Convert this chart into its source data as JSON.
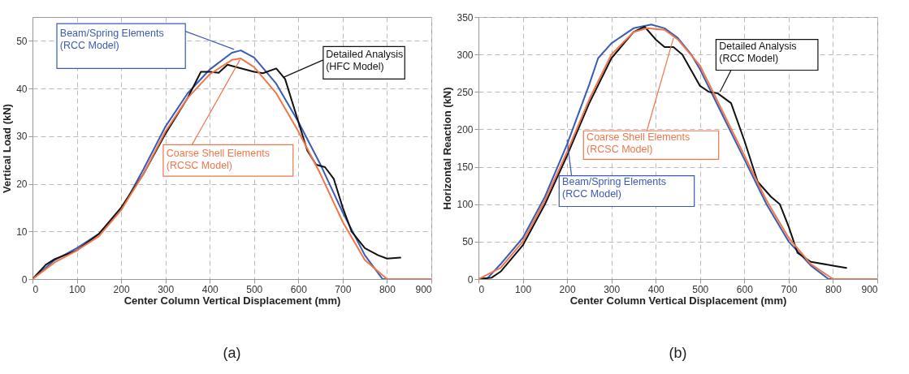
{
  "chart_data": [
    {
      "type": "line",
      "title": "(a)",
      "xlabel": "Center Column Vertical Displacement  (mm)",
      "ylabel": "Vertical Load  (kN)",
      "xlim": [
        0,
        900
      ],
      "xticks": [
        0,
        100,
        200,
        300,
        400,
        500,
        600,
        700,
        800,
        900
      ],
      "ylim": [
        0,
        55
      ],
      "yticks": [
        0,
        10,
        20,
        30,
        40,
        50
      ],
      "grid": true,
      "line_style": "solid",
      "series": [
        {
          "name": "Beam/Spring Elements\n(RCC Model)",
          "color": "#3a5bb5",
          "x": [
            0,
            50,
            100,
            150,
            200,
            250,
            300,
            350,
            400,
            450,
            470,
            500,
            550,
            600,
            650,
            700,
            750,
            790,
            900
          ],
          "values": [
            0,
            4,
            6.5,
            9.5,
            14.5,
            23,
            32,
            39,
            44,
            47.5,
            48,
            46.5,
            41,
            33,
            24,
            14,
            5,
            0,
            0
          ]
        },
        {
          "name": "Detailed Analysis\n(HFC Model)",
          "color": "#111111",
          "x": [
            0,
            30,
            50,
            100,
            150,
            200,
            250,
            300,
            350,
            380,
            400,
            420,
            440,
            460,
            500,
            520,
            550,
            570,
            600,
            620,
            640,
            660,
            680,
            700,
            720,
            750,
            780,
            800,
            830
          ],
          "values": [
            0,
            3,
            4.2,
            6,
            9.5,
            15,
            22,
            30.5,
            38,
            43.5,
            43.5,
            43.3,
            45,
            44.5,
            43.5,
            43.2,
            44.2,
            42,
            33,
            27,
            24,
            23.5,
            21,
            15,
            10,
            6.5,
            5,
            4.3,
            4.5
          ]
        },
        {
          "name": "Coarse Shell Elements\n(RCSC Model)",
          "color": "#f0764a",
          "x": [
            0,
            50,
            100,
            150,
            200,
            250,
            300,
            350,
            400,
            450,
            470,
            500,
            550,
            600,
            650,
            700,
            750,
            800,
            900
          ],
          "values": [
            0,
            3.5,
            6,
            9,
            14.5,
            22,
            31,
            38,
            43,
            46,
            46.3,
            44.5,
            39,
            31,
            22,
            12,
            4,
            0,
            0
          ]
        }
      ]
    },
    {
      "type": "line",
      "title": "(b)",
      "xlabel": "Center Column Vertical Displacement  (mm)",
      "ylabel": "Horizontal Reaction  (kN)",
      "xlim": [
        0,
        900
      ],
      "xticks": [
        0,
        100,
        200,
        300,
        400,
        500,
        600,
        700,
        800,
        900
      ],
      "ylim": [
        0,
        350
      ],
      "yticks": [
        0,
        50,
        100,
        150,
        200,
        250,
        300,
        350
      ],
      "grid": true,
      "line_style": "solid",
      "series": [
        {
          "name": "Beam/Spring Elements\n(RCC Model)",
          "color": "#3a5bb5",
          "x": [
            0,
            20,
            50,
            100,
            150,
            200,
            250,
            270,
            300,
            350,
            390,
            420,
            450,
            480,
            500,
            550,
            600,
            650,
            700,
            750,
            790,
            900
          ],
          "values": [
            0,
            1,
            20,
            55,
            110,
            180,
            260,
            295,
            315,
            335,
            340,
            335,
            322,
            300,
            280,
            220,
            160,
            100,
            50,
            18,
            0,
            0
          ]
        },
        {
          "name": "Detailed Analysis\n(RCC Model)",
          "color": "#111111",
          "x": [
            0,
            30,
            50,
            100,
            150,
            200,
            250,
            300,
            350,
            375,
            400,
            420,
            440,
            460,
            500,
            520,
            540,
            570,
            600,
            630,
            660,
            680,
            700,
            720,
            750,
            800,
            830
          ],
          "values": [
            0,
            2,
            10,
            45,
            100,
            165,
            235,
            295,
            330,
            337,
            320,
            310,
            310,
            300,
            258,
            250,
            248,
            235,
            185,
            130,
            110,
            100,
            70,
            35,
            23,
            18,
            15
          ]
        },
        {
          "name": "Coarse Shell Elements\n(RCSC Model)",
          "color": "#f0764a",
          "x": [
            0,
            50,
            100,
            150,
            200,
            250,
            300,
            350,
            380,
            420,
            450,
            500,
            550,
            600,
            650,
            700,
            750,
            800,
            900
          ],
          "values": [
            0,
            15,
            50,
            105,
            170,
            240,
            300,
            330,
            335,
            333,
            320,
            285,
            225,
            165,
            105,
            55,
            20,
            0,
            0
          ]
        }
      ]
    }
  ]
}
